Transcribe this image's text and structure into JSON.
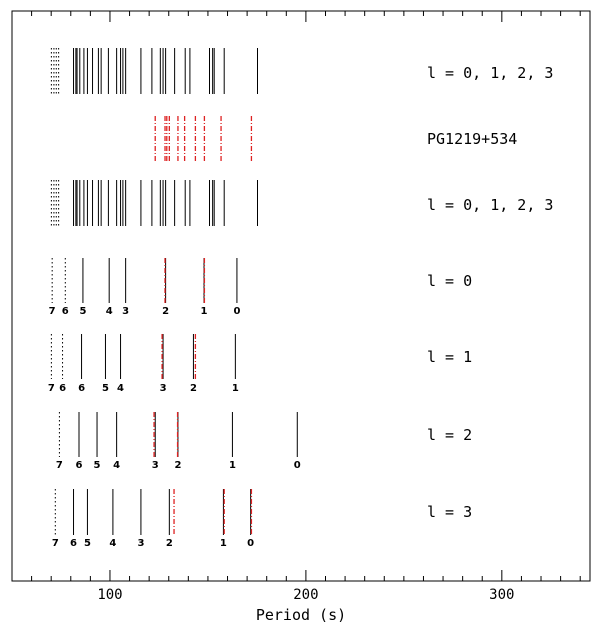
{
  "chart_data": {
    "type": "line",
    "xlabel": "Period (s)",
    "xlim": [
      50,
      345
    ],
    "x_ticks": [
      100,
      200,
      300
    ],
    "x_tick_labels": [
      "100",
      "200",
      "300"
    ],
    "x_minor_ticks": [
      60,
      70,
      80,
      90,
      110,
      120,
      130,
      140,
      150,
      160,
      170,
      180,
      190,
      210,
      220,
      230,
      240,
      250,
      260,
      270,
      280,
      290,
      310,
      320,
      330,
      340
    ],
    "observed_periods": [
      123.1,
      128.1,
      129.0,
      130.3,
      134.7,
      138.1,
      143.6,
      148.2,
      156.7,
      172.2
    ],
    "colors": {
      "model": "#000000",
      "observed": "#dd2222",
      "axis": "#000000"
    },
    "rows": [
      {
        "label": "l = 0, 1, 2, 3",
        "dotted_periods": [
          70.1,
          71.4,
          72.6,
          73.8
        ],
        "solid_periods": [
          81.4,
          82.6,
          83.2,
          84.6,
          86.7,
          88.5,
          91.1,
          94.1,
          95.5,
          99.2,
          103.4,
          105.4,
          106.6,
          108.0,
          115.8,
          121.4,
          125.7,
          127.1,
          128.4,
          133.0,
          138.4,
          140.8,
          150.8,
          152.4,
          153.2,
          158.3,
          175.3
        ]
      },
      {
        "label": "PG1219+534",
        "observed_periods": [
          123.1,
          128.1,
          129.0,
          130.3,
          134.7,
          138.1,
          143.6,
          148.2,
          156.7,
          172.2
        ]
      },
      {
        "label": "l = 0, 1, 2, 3",
        "dotted_periods": [
          70.1,
          71.4,
          72.6,
          73.8
        ],
        "solid_periods": [
          81.4,
          82.6,
          83.2,
          84.6,
          86.7,
          88.5,
          91.1,
          94.1,
          95.5,
          99.2,
          103.4,
          105.4,
          106.6,
          108.0,
          115.8,
          121.4,
          125.7,
          127.1,
          128.4,
          133.0,
          138.4,
          140.8,
          150.8,
          152.4,
          153.2,
          158.3,
          175.3
        ]
      },
      {
        "label": "l = 0",
        "modes": [
          {
            "period": 70.5,
            "k": "7",
            "dotted": true
          },
          {
            "period": 77.2,
            "k": "6",
            "dotted": true
          },
          {
            "period": 86.2,
            "k": "5",
            "dotted": false
          },
          {
            "period": 99.6,
            "k": "4",
            "dotted": false
          },
          {
            "period": 108.0,
            "k": "3",
            "dotted": false
          },
          {
            "period": 128.4,
            "k": "2",
            "dotted": false,
            "observed": 128.1
          },
          {
            "period": 148.0,
            "k": "1",
            "dotted": false,
            "observed": 148.2
          },
          {
            "period": 164.8,
            "k": "0",
            "dotted": false
          }
        ]
      },
      {
        "label": "l = 1",
        "modes": [
          {
            "period": 70.1,
            "k": "7",
            "dotted": true
          },
          {
            "period": 75.8,
            "k": "6",
            "dotted": true
          },
          {
            "period": 85.5,
            "k": "6",
            "dotted": false
          },
          {
            "period": 97.7,
            "k": "5",
            "dotted": false
          },
          {
            "period": 105.4,
            "k": "4",
            "dotted": false
          },
          {
            "period": 127.1,
            "k": "3",
            "dotted": false,
            "observed": 126.6
          },
          {
            "period": 142.6,
            "k": "2",
            "dotted": false,
            "observed": 143.6
          },
          {
            "period": 164.0,
            "k": "1",
            "dotted": false
          }
        ]
      },
      {
        "label": "l = 2",
        "modes": [
          {
            "period": 74.2,
            "k": "7",
            "dotted": true
          },
          {
            "period": 84.2,
            "k": "6",
            "dotted": false
          },
          {
            "period": 93.4,
            "k": "5",
            "dotted": false
          },
          {
            "period": 103.4,
            "k": "4",
            "dotted": false
          },
          {
            "period": 123.1,
            "k": "3",
            "dotted": false,
            "observed": 122.5
          },
          {
            "period": 134.7,
            "k": "2",
            "dotted": false,
            "observed": 134.5
          },
          {
            "period": 162.5,
            "k": "1",
            "dotted": false
          },
          {
            "period": 195.6,
            "k": "0",
            "dotted": false
          }
        ]
      },
      {
        "label": "l = 3",
        "modes": [
          {
            "period": 72.1,
            "k": "7",
            "dotted": true
          },
          {
            "period": 81.4,
            "k": "6",
            "dotted": false
          },
          {
            "period": 88.5,
            "k": "5",
            "dotted": false
          },
          {
            "period": 101.5,
            "k": "4",
            "dotted": false
          },
          {
            "period": 115.8,
            "k": "3",
            "dotted": false
          },
          {
            "period": 130.3,
            "k": "2",
            "dotted": false,
            "observed": 132.7
          },
          {
            "period": 157.9,
            "k": "1",
            "dotted": false,
            "observed": 158.3
          },
          {
            "period": 171.8,
            "k": "0",
            "dotted": false,
            "observed": 172.2
          }
        ]
      }
    ]
  }
}
